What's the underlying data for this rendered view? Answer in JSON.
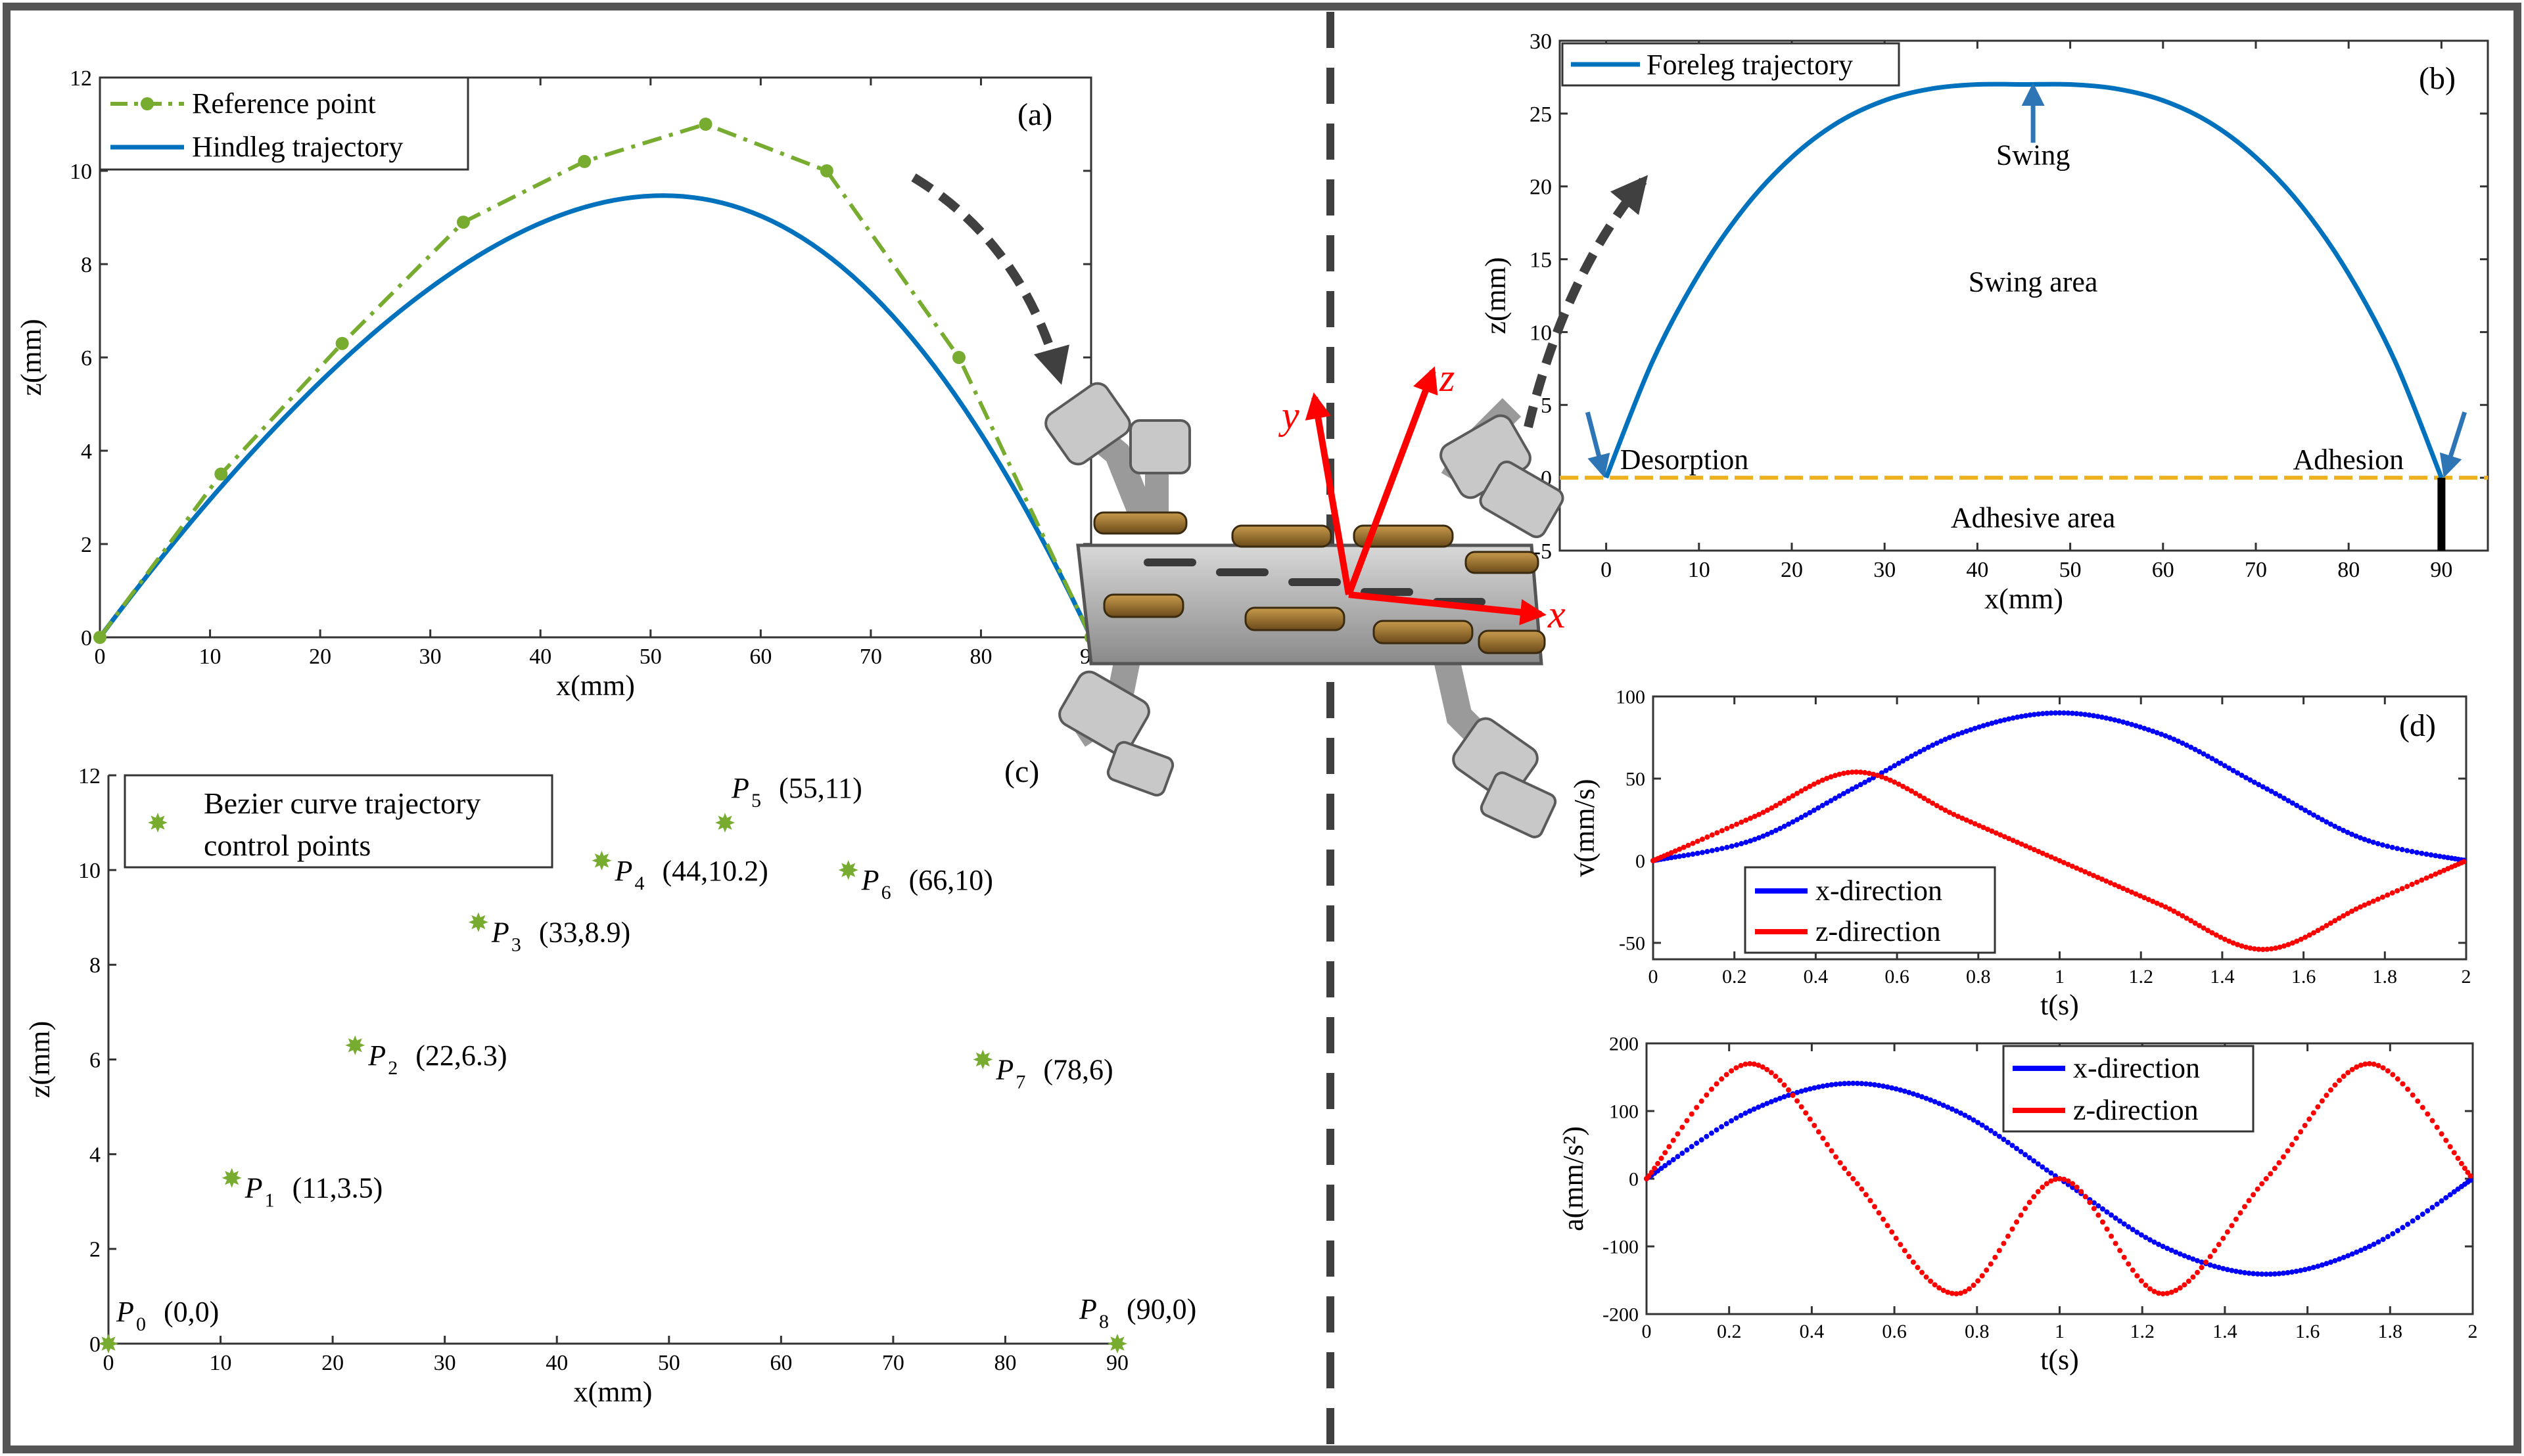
{
  "chart_data": [
    {
      "id": "a",
      "type": "line",
      "panel_label": "(a)",
      "xlabel": "x(mm)",
      "ylabel": "z(mm)",
      "xlim": [
        0,
        90
      ],
      "ylim": [
        0,
        12
      ],
      "xticks": [
        0,
        10,
        20,
        30,
        40,
        50,
        60,
        70,
        80,
        90
      ],
      "yticks": [
        0,
        2,
        4,
        6,
        8,
        10,
        12
      ],
      "legend": "top-left",
      "series": [
        {
          "name": "Reference point",
          "color": "#77ac30",
          "style": "dash-dot-marker",
          "x": [
            0,
            11,
            22,
            33,
            44,
            55,
            66,
            78,
            90
          ],
          "y": [
            0,
            3.5,
            6.3,
            8.9,
            10.2,
            11,
            10,
            6,
            0
          ]
        },
        {
          "name": "Hindleg trajectory",
          "color": "#0072bd",
          "style": "solid",
          "curve": "bezier-of-reference-points"
        }
      ]
    },
    {
      "id": "b",
      "type": "line",
      "panel_label": "(b)",
      "xlabel": "x(mm)",
      "ylabel": "z(mm)",
      "xlim": [
        -5,
        95
      ],
      "ylim": [
        -5,
        30
      ],
      "xticks": [
        0,
        10,
        20,
        30,
        40,
        50,
        60,
        70,
        80,
        90
      ],
      "yticks": [
        -5,
        0,
        5,
        10,
        15,
        20,
        25,
        30
      ],
      "legend": "top-left",
      "series": [
        {
          "name": "Foreleg trajectory",
          "color": "#0072bd",
          "style": "solid",
          "x": [
            0,
            5,
            10,
            15,
            20,
            25,
            30,
            35,
            40,
            45,
            50,
            55,
            60,
            65,
            70,
            75,
            80,
            85,
            90
          ],
          "y": [
            0,
            8.0,
            14.0,
            18.6,
            22.0,
            24.4,
            25.9,
            26.7,
            27.0,
            27.0,
            27.0,
            26.7,
            25.9,
            24.4,
            22.0,
            18.6,
            14.0,
            8.0,
            0
          ]
        }
      ],
      "reference_line": {
        "y": 0,
        "color": "#edb120",
        "style": "dashed"
      },
      "annotations": {
        "swing": "Swing",
        "swing_area": "Swing area",
        "adhesive_area": "Adhesive area",
        "desorption": "Desorption",
        "adhesion": "Adhesion"
      }
    },
    {
      "id": "c",
      "type": "scatter",
      "panel_label": "(c)",
      "xlabel": "x(mm)",
      "ylabel": "z(mm)",
      "xlim": [
        0,
        90
      ],
      "ylim": [
        0,
        12
      ],
      "xticks": [
        0,
        10,
        20,
        30,
        40,
        50,
        60,
        70,
        80,
        90
      ],
      "yticks": [
        0,
        2,
        4,
        6,
        8,
        10,
        12
      ],
      "legend": "top-left",
      "legend_lines": [
        "Bezier curve trajectory",
        "control points"
      ],
      "points": [
        {
          "name": "P",
          "sub": "0",
          "coord": "(0,0)",
          "x": 0,
          "y": 0
        },
        {
          "name": "P",
          "sub": "1",
          "coord": "(11,3.5)",
          "x": 11,
          "y": 3.5
        },
        {
          "name": "P",
          "sub": "2",
          "coord": "(22,6.3)",
          "x": 22,
          "y": 6.3
        },
        {
          "name": "P",
          "sub": "3",
          "coord": "(33,8.9)",
          "x": 33,
          "y": 8.9
        },
        {
          "name": "P",
          "sub": "4",
          "coord": "(44,10.2)",
          "x": 44,
          "y": 10.2
        },
        {
          "name": "P",
          "sub": "5",
          "coord": "(55,11)",
          "x": 55,
          "y": 11
        },
        {
          "name": "P",
          "sub": "6",
          "coord": "(66,10)",
          "x": 66,
          "y": 10
        },
        {
          "name": "P",
          "sub": "7",
          "coord": "(78,6)",
          "x": 78,
          "y": 6
        },
        {
          "name": "P",
          "sub": "8",
          "coord": "(90,0)",
          "x": 90,
          "y": 0
        }
      ],
      "color": "#77ac30"
    },
    {
      "id": "d-velocity",
      "type": "line",
      "panel_label": "(d)",
      "xlabel": "t(s)",
      "ylabel": "v(mm/s)",
      "xlim": [
        0,
        2
      ],
      "ylim": [
        -60,
        100
      ],
      "xticks": [
        0,
        0.2,
        0.4,
        0.6,
        0.8,
        1,
        1.2,
        1.4,
        1.6,
        1.8,
        2
      ],
      "yticks": [
        -50,
        0,
        50,
        100
      ],
      "legend": "bottom-left",
      "series": [
        {
          "name": "x-direction",
          "color": "#0000ff",
          "x": [
            0,
            0.25,
            0.5,
            0.75,
            1,
            1.25,
            1.5,
            1.75,
            2
          ],
          "y": [
            0,
            13,
            45,
            77,
            90,
            77,
            45,
            13,
            0
          ]
        },
        {
          "name": "z-direction",
          "color": "#ff0000",
          "x": [
            0,
            0.25,
            0.5,
            0.75,
            1,
            1.25,
            1.5,
            1.75,
            2
          ],
          "y": [
            0,
            27,
            54,
            27,
            0,
            -27,
            -54,
            -27,
            0
          ]
        }
      ]
    },
    {
      "id": "d-acceleration",
      "type": "line",
      "xlabel": "t(s)",
      "ylabel": "a(mm/s²)",
      "xlim": [
        0,
        2
      ],
      "ylim": [
        -200,
        200
      ],
      "xticks": [
        0,
        0.2,
        0.4,
        0.6,
        0.8,
        1,
        1.2,
        1.4,
        1.6,
        1.8,
        2
      ],
      "yticks": [
        -200,
        -100,
        0,
        100,
        200
      ],
      "legend": "top-right",
      "series": [
        {
          "name": "x-direction",
          "color": "#0000ff",
          "x": [
            0,
            0.25,
            0.5,
            0.75,
            1,
            1.25,
            1.5,
            1.75,
            2
          ],
          "y": [
            0,
            100,
            141,
            100,
            0,
            -100,
            -141,
            -100,
            0
          ]
        },
        {
          "name": "z-direction",
          "color": "#ff0000",
          "x": [
            0,
            0.25,
            0.5,
            0.75,
            1,
            1.25,
            1.5,
            1.75,
            2
          ],
          "y": [
            0,
            170,
            0,
            -170,
            0,
            -170,
            0,
            170,
            0
          ]
        }
      ]
    }
  ],
  "robot": {
    "axis_labels": [
      "x",
      "y",
      "z"
    ],
    "axis_color": "#ff0000"
  },
  "colors": {
    "frame": "#555555",
    "divider": "#404040",
    "flow_arrow": "#404040"
  }
}
